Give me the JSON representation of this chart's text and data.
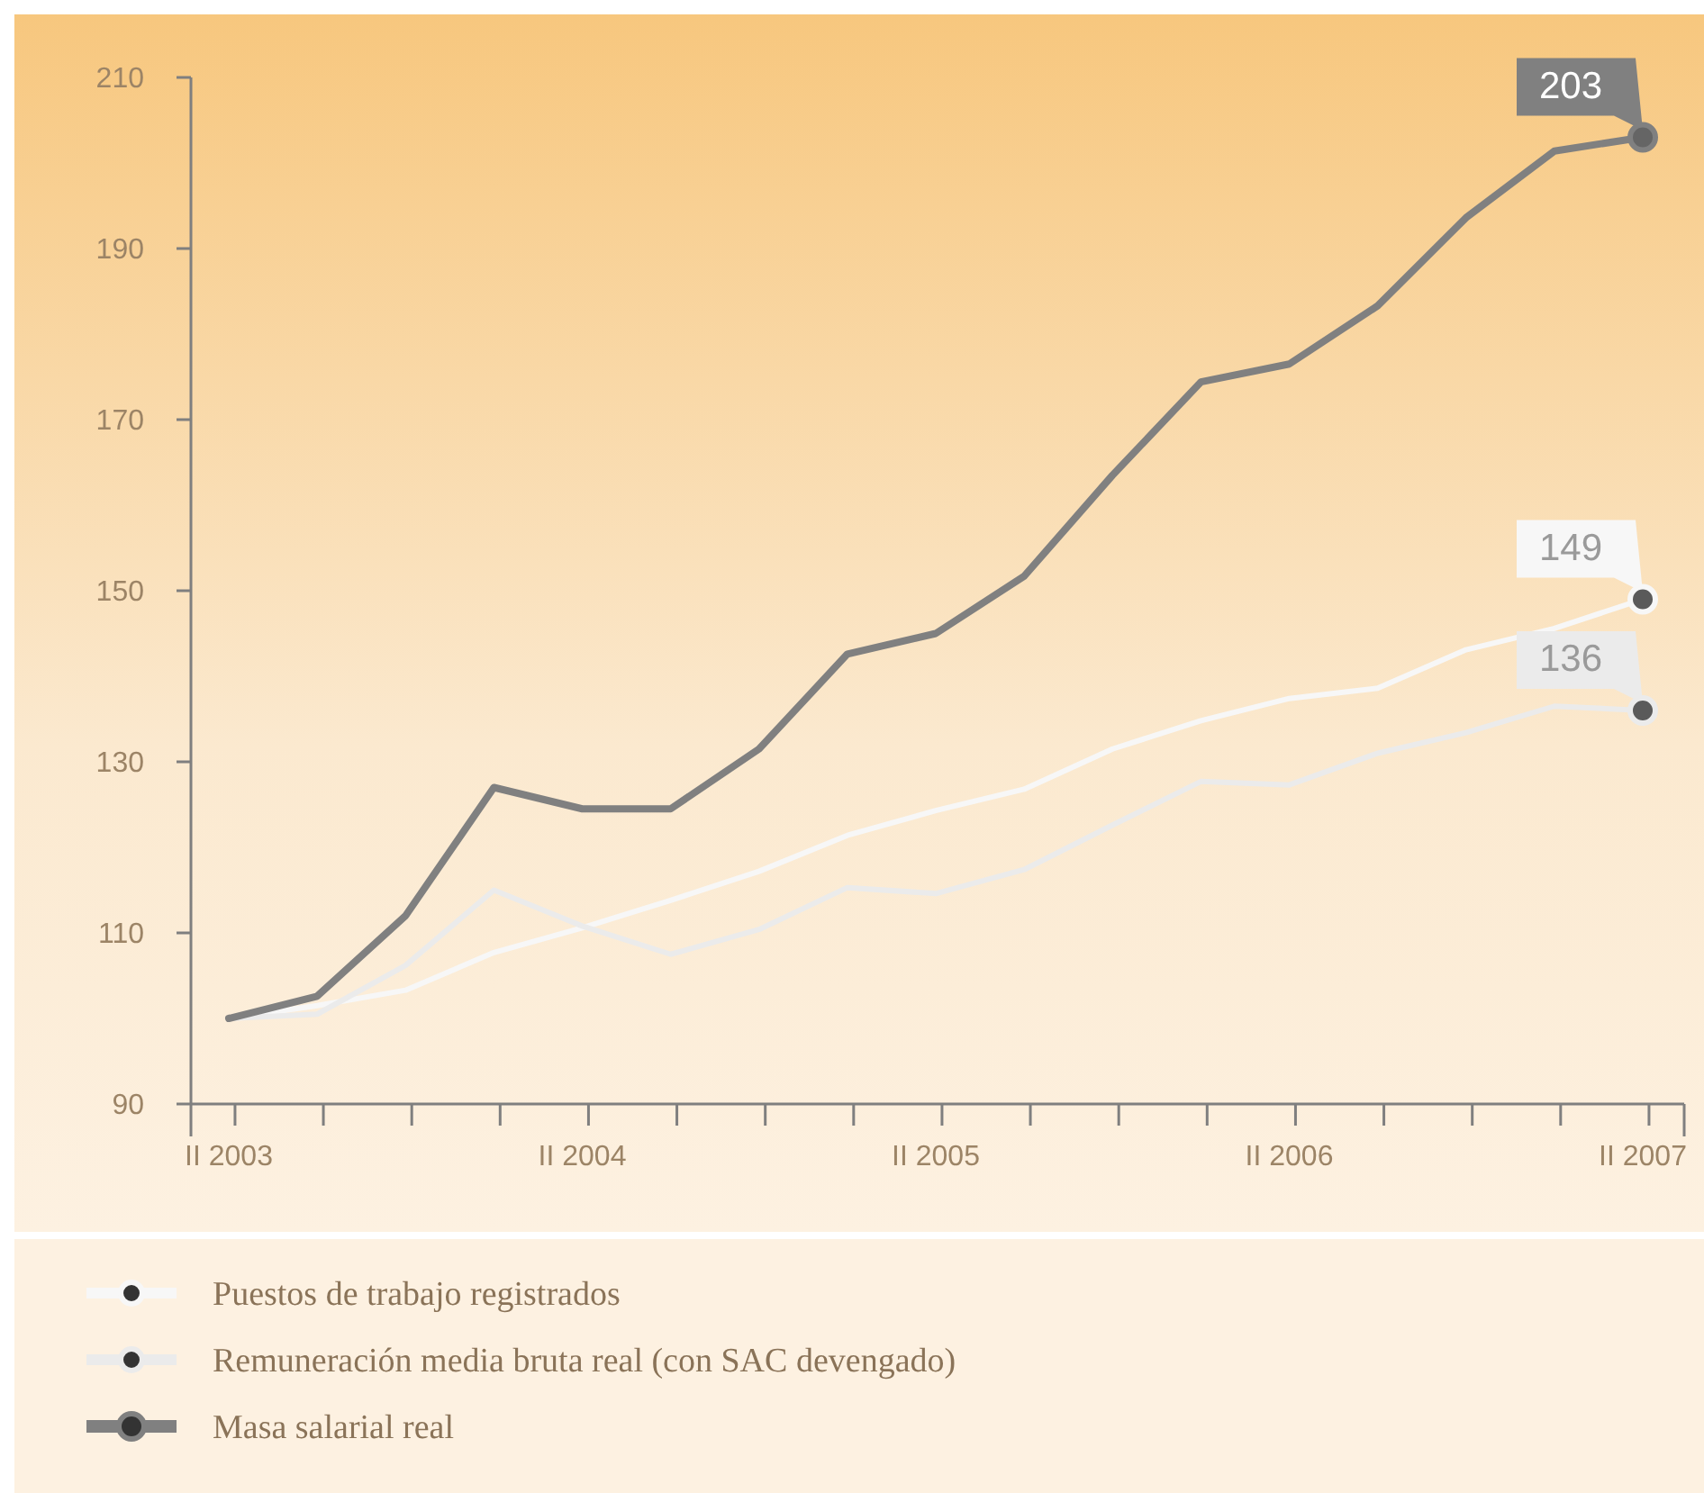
{
  "chart_data": {
    "type": "line",
    "categories": [
      "II 2003",
      null,
      null,
      null,
      "II 2004",
      null,
      null,
      null,
      "II 2005",
      null,
      null,
      null,
      "II 2006",
      null,
      null,
      null,
      "II 2007"
    ],
    "series": [
      {
        "name": "Puestos de trabajo registrados",
        "color": "#f7f7f7",
        "values": [
          100,
          101.5,
          103.3,
          107.7,
          110.6,
          113.8,
          117.2,
          121.4,
          124.3,
          126.8,
          131.5,
          134.8,
          137.4,
          138.6,
          143.1,
          145.6,
          149
        ],
        "value_labels": [
          null,
          null,
          null,
          null,
          null,
          null,
          null,
          null,
          null,
          null,
          null,
          null,
          null,
          null,
          null,
          null,
          "149"
        ]
      },
      {
        "name": "Remuneración media bruta real (con SAC devengado)",
        "color": "#ebebeb",
        "values": [
          100,
          100.5,
          106.2,
          115,
          110.8,
          107.5,
          110.4,
          115.3,
          114.6,
          117.4,
          122.6,
          127.7,
          127.3,
          131,
          133.4,
          136.5,
          136
        ],
        "value_labels": [
          null,
          null,
          null,
          null,
          null,
          null,
          null,
          null,
          null,
          null,
          null,
          null,
          null,
          null,
          null,
          null,
          "136"
        ]
      },
      {
        "name": "Masa salarial real",
        "color": "#808080",
        "values": [
          100,
          102.6,
          112,
          127,
          124.5,
          124.5,
          131.5,
          142.6,
          145,
          151.7,
          163.5,
          174.4,
          176.5,
          183.3,
          193.6,
          201.4,
          203
        ],
        "value_labels": [
          null,
          null,
          null,
          null,
          null,
          null,
          null,
          null,
          null,
          null,
          null,
          null,
          null,
          null,
          null,
          null,
          "203"
        ]
      }
    ],
    "ylim": [
      90,
      210
    ],
    "yticks": [
      90,
      110,
      130,
      150,
      170,
      190,
      210
    ],
    "grid": false,
    "legend": "bottom",
    "line_style": "solid"
  }
}
